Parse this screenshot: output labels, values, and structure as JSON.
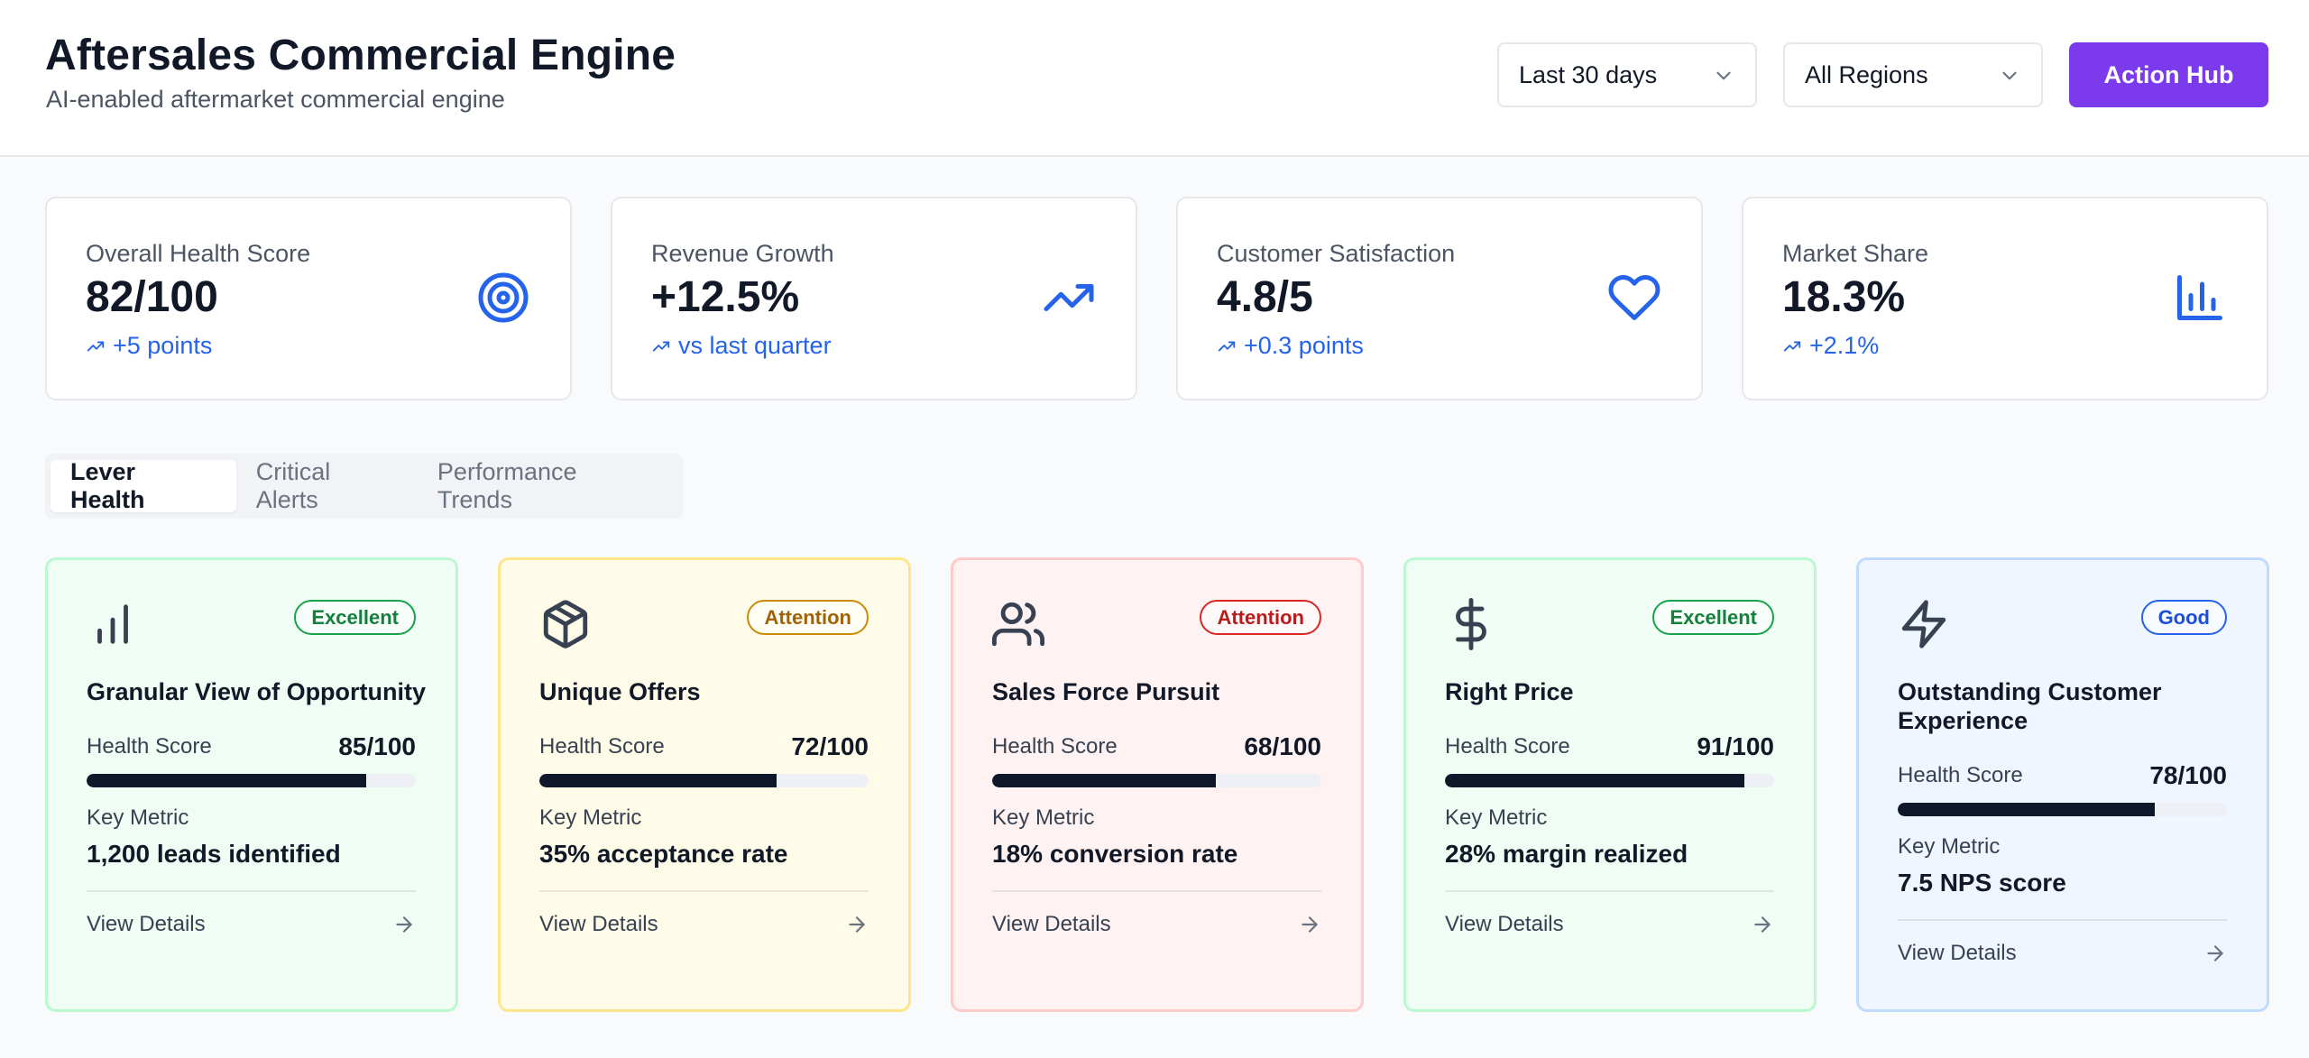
{
  "header": {
    "title": "Aftersales Commercial Engine",
    "subtitle": "AI-enabled aftermarket commercial engine",
    "date_filter": "Last 30 days",
    "region_filter": "All Regions",
    "action_label": "Action Hub"
  },
  "colors": {
    "accent": "#7c3aed",
    "icon_blue": "#2563eb",
    "excellent_bg": "#f0fdf4",
    "excellent_border": "#bbf7d0",
    "attention_yellow_bg": "#fefce8",
    "attention_red_bg": "#fef2f2",
    "good_bg": "#eff6ff"
  },
  "kpis": [
    {
      "label": "Overall Health Score",
      "value": "82/100",
      "trend": "+5 points",
      "icon": "target-icon"
    },
    {
      "label": "Revenue Growth",
      "value": "+12.5%",
      "trend": "vs last quarter",
      "icon": "trending-up-icon"
    },
    {
      "label": "Customer Satisfaction",
      "value": "4.8/5",
      "trend": "+0.3 points",
      "icon": "heart-icon"
    },
    {
      "label": "Market Share",
      "value": "18.3%",
      "trend": "+2.1%",
      "icon": "bar-chart-icon"
    }
  ],
  "tabs": [
    {
      "label": "Lever Health",
      "active": true
    },
    {
      "label": "Critical Alerts",
      "active": false
    },
    {
      "label": "Performance Trends",
      "active": false
    }
  ],
  "levers": [
    {
      "title": "Granular View of Opportunity",
      "badge": "Excellent",
      "health_label": "Health Score",
      "health_value": "85/100",
      "health": 85,
      "metric_label": "Key Metric",
      "metric_value": "1,200 leads identified",
      "details_label": "View Details",
      "icon": "bar-chart-icon"
    },
    {
      "title": "Unique Offers",
      "badge": "Attention",
      "health_label": "Health Score",
      "health_value": "72/100",
      "health": 72,
      "metric_label": "Key Metric",
      "metric_value": "35% acceptance rate",
      "details_label": "View Details",
      "icon": "package-icon"
    },
    {
      "title": "Sales Force Pursuit",
      "badge": "Attention",
      "health_label": "Health Score",
      "health_value": "68/100",
      "health": 68,
      "metric_label": "Key Metric",
      "metric_value": "18% conversion rate",
      "details_label": "View Details",
      "icon": "users-icon"
    },
    {
      "title": "Right Price",
      "badge": "Excellent",
      "health_label": "Health Score",
      "health_value": "91/100",
      "health": 91,
      "metric_label": "Key Metric",
      "metric_value": "28% margin realized",
      "details_label": "View Details",
      "icon": "dollar-icon"
    },
    {
      "title": "Outstanding Customer Experience",
      "badge": "Good",
      "health_label": "Health Score",
      "health_value": "78/100",
      "health": 78,
      "metric_label": "Key Metric",
      "metric_value": "7.5 NPS score",
      "details_label": "View Details",
      "icon": "zap-icon"
    }
  ]
}
